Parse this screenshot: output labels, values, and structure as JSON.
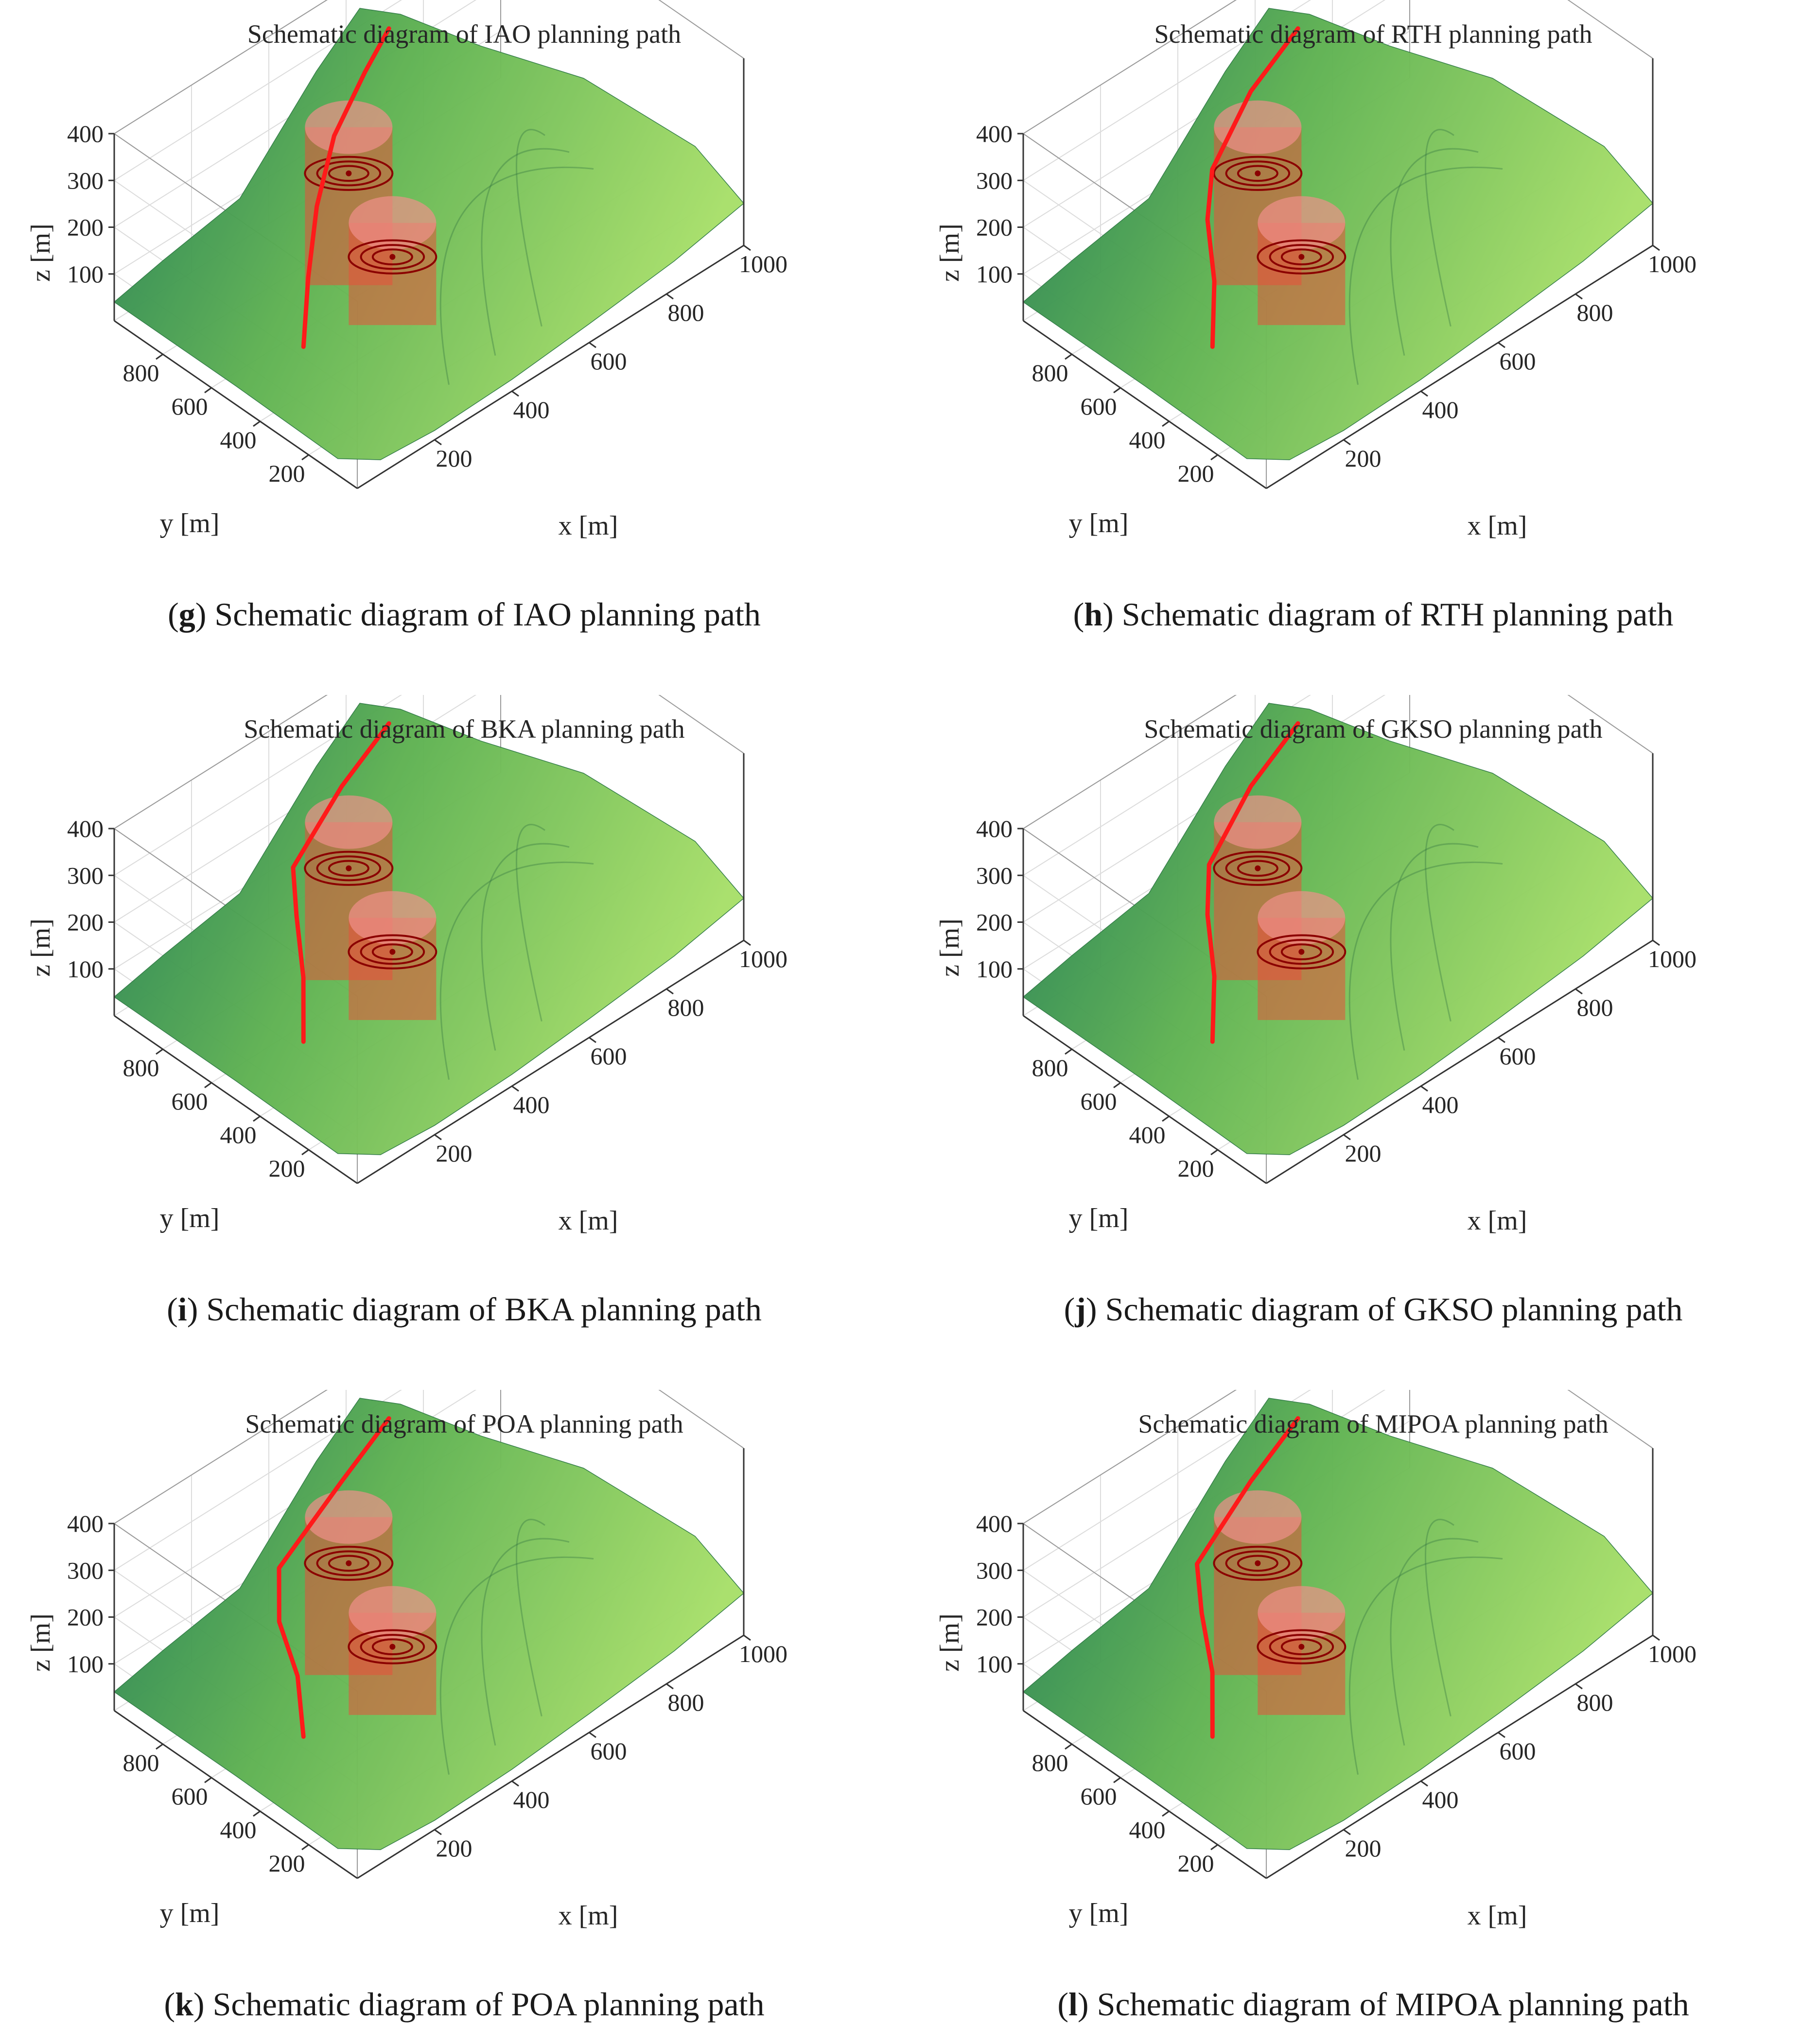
{
  "colors": {
    "path": "#ff1a1a",
    "threat_fill": "#e8503a",
    "threat_ring": "#8b0000",
    "terrain_high": "#a8df6a",
    "terrain_mid": "#5fb252",
    "terrain_low": "#1f7a55",
    "box": "#333333",
    "grid": "#dcdcdc"
  },
  "panels": [
    {
      "letter": "g",
      "caption": "Schematic diagram of IAO planning path"
    },
    {
      "letter": "h",
      "caption": "Schematic diagram of RTH planning path"
    },
    {
      "letter": "i",
      "caption": "Schematic diagram of BKA planning path"
    },
    {
      "letter": "j",
      "caption": "Schematic diagram of GKSO planning path"
    },
    {
      "letter": "k",
      "caption": "Schematic diagram of POA planning path"
    },
    {
      "letter": "l",
      "caption": "Schematic diagram of MIPOA planning path"
    }
  ],
  "chart_data": [
    {
      "type": "surface3d",
      "title": "Schematic diagram of IAO planning path",
      "xlabel": "x [m]",
      "ylabel": "y [m]",
      "zlabel": "z [m]",
      "x_ticks": [
        "200",
        "400",
        "600",
        "800",
        "1000"
      ],
      "y_ticks": [
        "200",
        "400",
        "600",
        "800"
      ],
      "z_ticks": [
        "100",
        "200",
        "300",
        "400"
      ],
      "xlim": [
        0,
        1000
      ],
      "ylim": [
        0,
        1000
      ],
      "zlim": [
        0,
        400
      ],
      "grid": true,
      "threats": [
        {
          "x": 330,
          "y": 560,
          "z_top": 400,
          "radius": 70
        },
        {
          "x": 330,
          "y": 380,
          "z_top": 260,
          "radius": 70
        }
      ],
      "path": {
        "x": [
          150,
          200,
          260,
          330,
          460,
          560
        ],
        "y": [
          460,
          520,
          580,
          620,
          700,
          760
        ],
        "z": [
          60,
          160,
          260,
          360,
          400,
          420
        ]
      }
    },
    {
      "type": "surface3d",
      "title": "Schematic diagram of RTH planning path",
      "xlabel": "x [m]",
      "ylabel": "y [m]",
      "zlabel": "z [m]",
      "x_ticks": [
        "200",
        "400",
        "600",
        "800",
        "1000"
      ],
      "y_ticks": [
        "200",
        "400",
        "600",
        "800"
      ],
      "z_ticks": [
        "100",
        "200",
        "300",
        "400"
      ],
      "xlim": [
        0,
        1000
      ],
      "ylim": [
        0,
        1000
      ],
      "zlim": [
        0,
        400
      ],
      "grid": true,
      "threats": [
        {
          "x": 330,
          "y": 560,
          "z_top": 400,
          "radius": 70
        },
        {
          "x": 330,
          "y": 380,
          "z_top": 260,
          "radius": 70
        }
      ],
      "path": {
        "x": [
          150,
          180,
          200,
          250,
          400,
          560
        ],
        "y": [
          460,
          500,
          560,
          620,
          700,
          760
        ],
        "z": [
          60,
          170,
          270,
          330,
          390,
          420
        ]
      }
    },
    {
      "type": "surface3d",
      "title": "Schematic diagram of BKA planning path",
      "xlabel": "x [m]",
      "ylabel": "y [m]",
      "zlabel": "z [m]",
      "x_ticks": [
        "200",
        "400",
        "600",
        "800",
        "1000"
      ],
      "y_ticks": [
        "200",
        "400",
        "600",
        "800"
      ],
      "z_ticks": [
        "100",
        "200",
        "300",
        "400"
      ],
      "xlim": [
        0,
        1000
      ],
      "ylim": [
        0,
        1000
      ],
      "zlim": [
        0,
        400
      ],
      "grid": true,
      "threats": [
        {
          "x": 330,
          "y": 560,
          "z_top": 400,
          "radius": 70
        },
        {
          "x": 330,
          "y": 380,
          "z_top": 260,
          "radius": 70
        }
      ],
      "path": {
        "x": [
          150,
          175,
          195,
          230,
          400,
          560
        ],
        "y": [
          460,
          500,
          560,
          630,
          700,
          760
        ],
        "z": [
          60,
          170,
          270,
          330,
          390,
          420
        ]
      }
    },
    {
      "type": "surface3d",
      "title": "Schematic diagram of GKSO planning path",
      "xlabel": "x [m]",
      "ylabel": "y [m]",
      "zlabel": "z [m]",
      "x_ticks": [
        "200",
        "400",
        "600",
        "800",
        "1000"
      ],
      "y_ticks": [
        "200",
        "400",
        "600",
        "800"
      ],
      "z_ticks": [
        "100",
        "200",
        "300",
        "400"
      ],
      "xlim": [
        0,
        1000
      ],
      "ylim": [
        0,
        1000
      ],
      "zlim": [
        0,
        400
      ],
      "grid": true,
      "threats": [
        {
          "x": 330,
          "y": 560,
          "z_top": 400,
          "radius": 70
        },
        {
          "x": 330,
          "y": 380,
          "z_top": 260,
          "radius": 70
        }
      ],
      "path": {
        "x": [
          150,
          180,
          200,
          245,
          400,
          560
        ],
        "y": [
          460,
          500,
          560,
          625,
          700,
          760
        ],
        "z": [
          60,
          170,
          270,
          330,
          390,
          420
        ]
      }
    },
    {
      "type": "surface3d",
      "title": "Schematic diagram of POA planning path",
      "xlabel": "x [m]",
      "ylabel": "y [m]",
      "zlabel": "z [m]",
      "x_ticks": [
        "200",
        "400",
        "600",
        "800",
        "1000"
      ],
      "y_ticks": [
        "200",
        "400",
        "600",
        "800"
      ],
      "z_ticks": [
        "100",
        "200",
        "300",
        "400"
      ],
      "xlim": [
        0,
        1000
      ],
      "ylim": [
        0,
        1000
      ],
      "zlim": [
        0,
        400
      ],
      "grid": true,
      "threats": [
        {
          "x": 330,
          "y": 560,
          "z_top": 400,
          "radius": 70
        },
        {
          "x": 330,
          "y": 380,
          "z_top": 260,
          "radius": 70
        }
      ],
      "path": {
        "x": [
          150,
          160,
          150,
          200,
          400,
          560
        ],
        "y": [
          460,
          500,
          560,
          640,
          700,
          760
        ],
        "z": [
          60,
          170,
          270,
          330,
          390,
          420
        ]
      }
    },
    {
      "type": "surface3d",
      "title": "Schematic diagram of MIPOA planning path",
      "xlabel": "x [m]",
      "ylabel": "y [m]",
      "zlabel": "z [m]",
      "x_ticks": [
        "200",
        "400",
        "600",
        "800",
        "1000"
      ],
      "y_ticks": [
        "200",
        "400",
        "600",
        "800"
      ],
      "z_ticks": [
        "100",
        "200",
        "300",
        "400"
      ],
      "xlim": [
        0,
        1000
      ],
      "ylim": [
        0,
        1000
      ],
      "zlim": [
        0,
        400
      ],
      "grid": true,
      "threats": [
        {
          "x": 330,
          "y": 560,
          "z_top": 400,
          "radius": 70
        },
        {
          "x": 330,
          "y": 380,
          "z_top": 260,
          "radius": 70
        }
      ],
      "path": {
        "x": [
          150,
          175,
          185,
          220,
          400,
          560
        ],
        "y": [
          460,
          500,
          560,
          635,
          700,
          760
        ],
        "z": [
          60,
          170,
          270,
          330,
          390,
          420
        ]
      }
    }
  ]
}
